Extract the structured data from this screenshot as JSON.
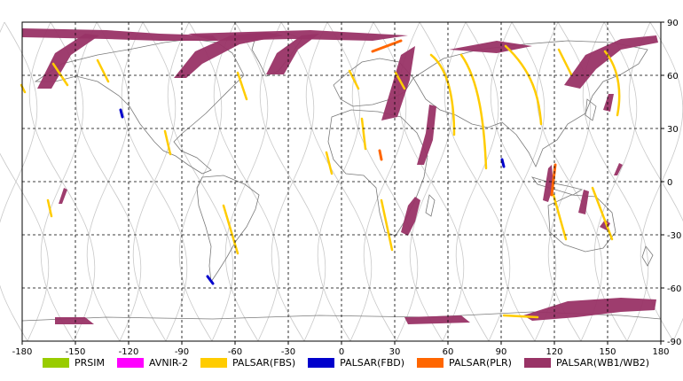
{
  "map": {
    "x_ticks": [
      "-180",
      "-150",
      "-120",
      "-90",
      "-60",
      "-30",
      "0",
      "30",
      "60",
      "90",
      "120",
      "150",
      "180"
    ],
    "y_ticks": [
      "90",
      "60",
      "30",
      "0",
      "-30",
      "-60",
      "-90"
    ],
    "xlim": [
      -180,
      180
    ],
    "ylim": [
      -90,
      90
    ],
    "grid": "dashed",
    "colors": {
      "frame": "#000000",
      "coast": "#7a7a7a",
      "orbit": "#c8c8c8",
      "grid": "#000000"
    }
  },
  "legend": [
    {
      "key": "prsim",
      "label": "PRSIM",
      "color": "#99cc00"
    },
    {
      "key": "avnir",
      "label": "AVNIR-2",
      "color": "#ff00ff"
    },
    {
      "key": "fbs",
      "label": "PALSAR(FBS)",
      "color": "#ffcc00"
    },
    {
      "key": "fbd",
      "label": "PALSAR(FBD)",
      "color": "#0000cc"
    },
    {
      "key": "plr",
      "label": "PALSAR(PLR)",
      "color": "#ff6600"
    },
    {
      "key": "wb",
      "label": "PALSAR(WB1/WB2)",
      "color": "#993366"
    }
  ]
}
